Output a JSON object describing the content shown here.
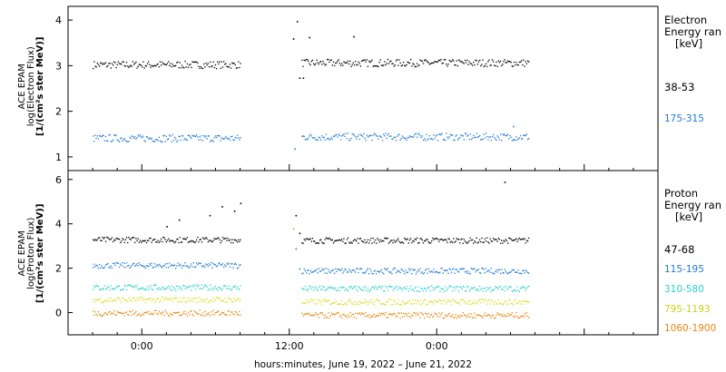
{
  "colors": {
    "black": "#000000",
    "blue": "#1f7ad6",
    "cyan": "#2ad1c9",
    "yellow": "#d6e02a",
    "orange": "#e8860e"
  },
  "xaxis": {
    "label": "hours:minutes, June 19, 2022 – June 21, 2022",
    "ticks": [
      "0:00",
      "12:00",
      "0:00"
    ]
  },
  "panels": {
    "electron": {
      "ylabel": {
        "line1": "ACE EPAM",
        "line2": "log(Electron Flux)",
        "line3": "[1/(cm²s ster MeV)]"
      },
      "legend": {
        "title1": "Electron",
        "title2": "Energy ran",
        "unit": "[keV]",
        "items": [
          "38-53",
          "175-315"
        ]
      }
    },
    "proton": {
      "ylabel": {
        "line1": "ACE EPAM",
        "line2": "log(Proton Flux)",
        "line3": "[1/(cm²s ster MeV)]"
      },
      "legend": {
        "title1": "Proton",
        "title2": "Energy ran",
        "unit": "[keV]",
        "items": [
          "47-68",
          "115-195",
          "310-580",
          "795-1193",
          "1060-1900"
        ]
      }
    }
  },
  "chart_data": [
    {
      "type": "scatter",
      "title": "",
      "ylabel": "ACE EPAM log(Electron Flux) [1/(cm²s ster MeV)]",
      "xlabel": "hours:minutes, June 19, 2022 – June 21, 2022",
      "xlim": [
        -6,
        42
      ],
      "ylim": [
        0.7,
        4.3
      ],
      "yticks": [
        1,
        2,
        3,
        4
      ],
      "series": [
        {
          "name": "38-53",
          "color": "#000000",
          "segments": [
            [
              -4,
              8,
              3.03
            ],
            [
              13,
              31.5,
              3.07
            ]
          ],
          "spikes": [
            [
              12.3,
              3.6
            ],
            [
              12.6,
              3.98
            ],
            [
              12.8,
              2.74
            ],
            [
              13.1,
              2.74
            ],
            [
              13.6,
              3.63
            ],
            [
              17.2,
              3.65
            ]
          ]
        },
        {
          "name": "175-315",
          "color": "#1f7ad6",
          "segments": [
            [
              -4,
              8,
              1.42
            ],
            [
              13,
              31.5,
              1.45
            ]
          ],
          "spikes": [
            [
              12.4,
              1.19
            ],
            [
              30.2,
              1.68
            ]
          ]
        }
      ]
    },
    {
      "type": "scatter",
      "title": "",
      "ylabel": "ACE EPAM log(Proton Flux) [1/(cm²s ster MeV)]",
      "xlabel": "hours:minutes, June 19, 2022 – June 21, 2022",
      "xlim": [
        -6,
        42
      ],
      "ylim": [
        -1.0,
        6.4
      ],
      "yticks": [
        0,
        2,
        4,
        6
      ],
      "series": [
        {
          "name": "47-68",
          "color": "#000000",
          "segments": [
            [
              -4,
              8,
              3.3
            ],
            [
              13,
              31.5,
              3.27
            ]
          ],
          "spikes": [
            [
              2.0,
              3.9
            ],
            [
              3.0,
              4.2
            ],
            [
              5.5,
              4.4
            ],
            [
              6.5,
              4.8
            ],
            [
              7.5,
              4.6
            ],
            [
              8.0,
              4.95
            ],
            [
              12.5,
              4.4
            ],
            [
              12.8,
              3.6
            ],
            [
              29.5,
              5.9
            ]
          ]
        },
        {
          "name": "115-195",
          "color": "#1f7ad6",
          "segments": [
            [
              -4,
              8,
              2.15
            ],
            [
              13,
              31.5,
              1.9
            ]
          ],
          "spikes": [
            [
              12.5,
              2.9
            ],
            [
              12.8,
              2.0
            ]
          ]
        },
        {
          "name": "310-580",
          "color": "#2ad1c9",
          "segments": [
            [
              -4,
              8,
              1.15
            ],
            [
              13,
              31.5,
              1.1
            ]
          ],
          "spikes": []
        },
        {
          "name": "795-1193",
          "color": "#d6e02a",
          "segments": [
            [
              -4,
              8,
              0.6
            ],
            [
              13,
              31.5,
              0.5
            ]
          ],
          "spikes": []
        },
        {
          "name": "1060-1900",
          "color": "#e8860e",
          "segments": [
            [
              -4,
              8,
              0.0
            ],
            [
              13,
              31.5,
              -0.1
            ]
          ],
          "spikes": [
            [
              12.3,
              3.8
            ]
          ]
        }
      ]
    }
  ]
}
